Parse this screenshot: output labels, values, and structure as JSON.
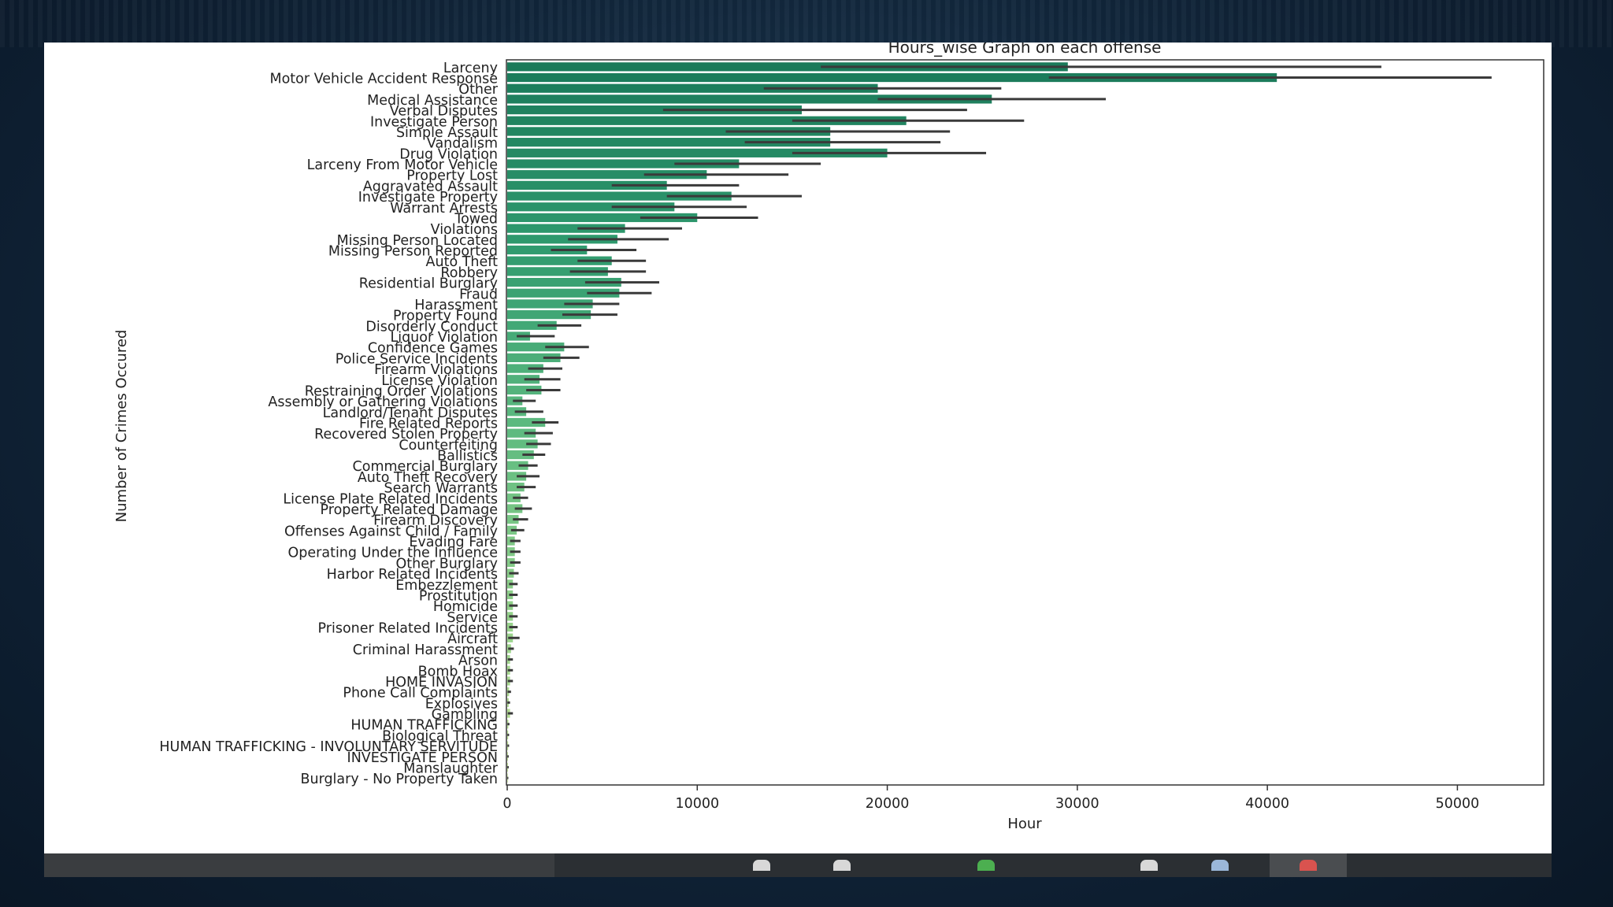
{
  "chart_data": {
    "type": "bar",
    "orientation": "horizontal",
    "title": "Hours_wise Graph on each offense",
    "xlabel": "Hour",
    "ylabel": "Number of Crimes Occured",
    "xlim": [
      0,
      54500
    ],
    "xticks": [
      "0",
      "10000",
      "20000",
      "30000",
      "40000",
      "50000"
    ],
    "xtick_values": [
      0,
      10000,
      20000,
      30000,
      40000,
      50000
    ],
    "palette": [
      "#1b7a5a",
      "#2f9a6e",
      "#5cb97f",
      "#8fd08a",
      "#c9e59a"
    ],
    "categories": [
      "Larceny",
      "Motor Vehicle Accident Response",
      "Other",
      "Medical Assistance",
      "Verbal Disputes",
      "Investigate Person",
      "Simple Assault",
      "Vandalism",
      "Drug Violation",
      "Larceny From Motor Vehicle",
      "Property Lost",
      "Aggravated Assault",
      "Investigate Property",
      "Warrant Arrests",
      "Towed",
      "Violations",
      "Missing Person Located",
      "Missing Person Reported",
      "Auto Theft",
      "Robbery",
      "Residential Burglary",
      "Fraud",
      "Harassment",
      "Property Found",
      "Disorderly Conduct",
      "Liquor Violation",
      "Confidence Games",
      "Police Service Incidents",
      "Firearm Violations",
      "License Violation",
      "Restraining Order Violations",
      "Assembly or Gathering Violations",
      "Landlord/Tenant Disputes",
      "Fire Related Reports",
      "Recovered Stolen Property",
      "Counterfeiting",
      "Ballistics",
      "Commercial Burglary",
      "Auto Theft Recovery",
      "Search Warrants",
      "License Plate Related Incidents",
      "Property Related Damage",
      "Firearm Discovery",
      "Offenses Against Child / Family",
      "Evading Fare",
      "Operating Under the Influence",
      "Other Burglary",
      "Harbor Related Incidents",
      "Embezzlement",
      "Prostitution",
      "Homicide",
      "Service",
      "Prisoner Related Incidents",
      "Aircraft",
      "Criminal Harassment",
      "Arson",
      "Bomb Hoax",
      "HOME INVASION",
      "Phone Call Complaints",
      "Explosives",
      "Gambling",
      "HUMAN TRAFFICKING",
      "Biological Threat",
      "HUMAN TRAFFICKING - INVOLUNTARY SERVITUDE",
      "INVESTIGATE PERSON",
      "Manslaughter",
      "Burglary - No Property Taken"
    ],
    "values": [
      29500,
      40500,
      19500,
      25500,
      15500,
      21000,
      17000,
      17000,
      20000,
      12200,
      10500,
      8400,
      11800,
      8800,
      10000,
      6200,
      5800,
      4200,
      5500,
      5300,
      6000,
      5900,
      4500,
      4400,
      2600,
      1200,
      3000,
      2800,
      1900,
      1700,
      1800,
      800,
      1000,
      2000,
      1500,
      1600,
      1400,
      1100,
      1000,
      900,
      700,
      800,
      600,
      500,
      400,
      400,
      400,
      350,
      300,
      300,
      300,
      300,
      300,
      300,
      200,
      150,
      150,
      150,
      100,
      80,
      150,
      60,
      50,
      50,
      40,
      40,
      30
    ],
    "ci_low": [
      16500,
      28500,
      13500,
      19500,
      8200,
      15000,
      11500,
      12500,
      15000,
      8800,
      7200,
      5500,
      8400,
      5500,
      7000,
      3700,
      3200,
      2300,
      3700,
      3300,
      4100,
      4200,
      3000,
      2900,
      1600,
      500,
      2000,
      1900,
      1100,
      900,
      1000,
      300,
      400,
      1300,
      900,
      1000,
      800,
      600,
      500,
      500,
      300,
      400,
      300,
      200,
      150,
      150,
      150,
      100,
      100,
      100,
      100,
      100,
      100,
      50,
      50,
      30,
      30,
      30,
      20,
      10,
      30,
      10,
      10,
      10,
      5,
      5,
      5
    ],
    "ci_high": [
      46000,
      51800,
      26000,
      31500,
      24200,
      27200,
      23300,
      22800,
      25200,
      16500,
      14800,
      12200,
      15500,
      12600,
      13200,
      9200,
      8500,
      6800,
      7300,
      7300,
      8000,
      7600,
      5900,
      5800,
      3900,
      2500,
      4300,
      3800,
      2900,
      2800,
      2800,
      1500,
      1900,
      2700,
      2400,
      2300,
      2000,
      1600,
      1700,
      1500,
      1100,
      1300,
      1100,
      900,
      700,
      700,
      700,
      600,
      550,
      550,
      550,
      550,
      550,
      650,
      350,
      300,
      300,
      300,
      200,
      150,
      300,
      120,
      100,
      100,
      80,
      80,
      60
    ]
  }
}
